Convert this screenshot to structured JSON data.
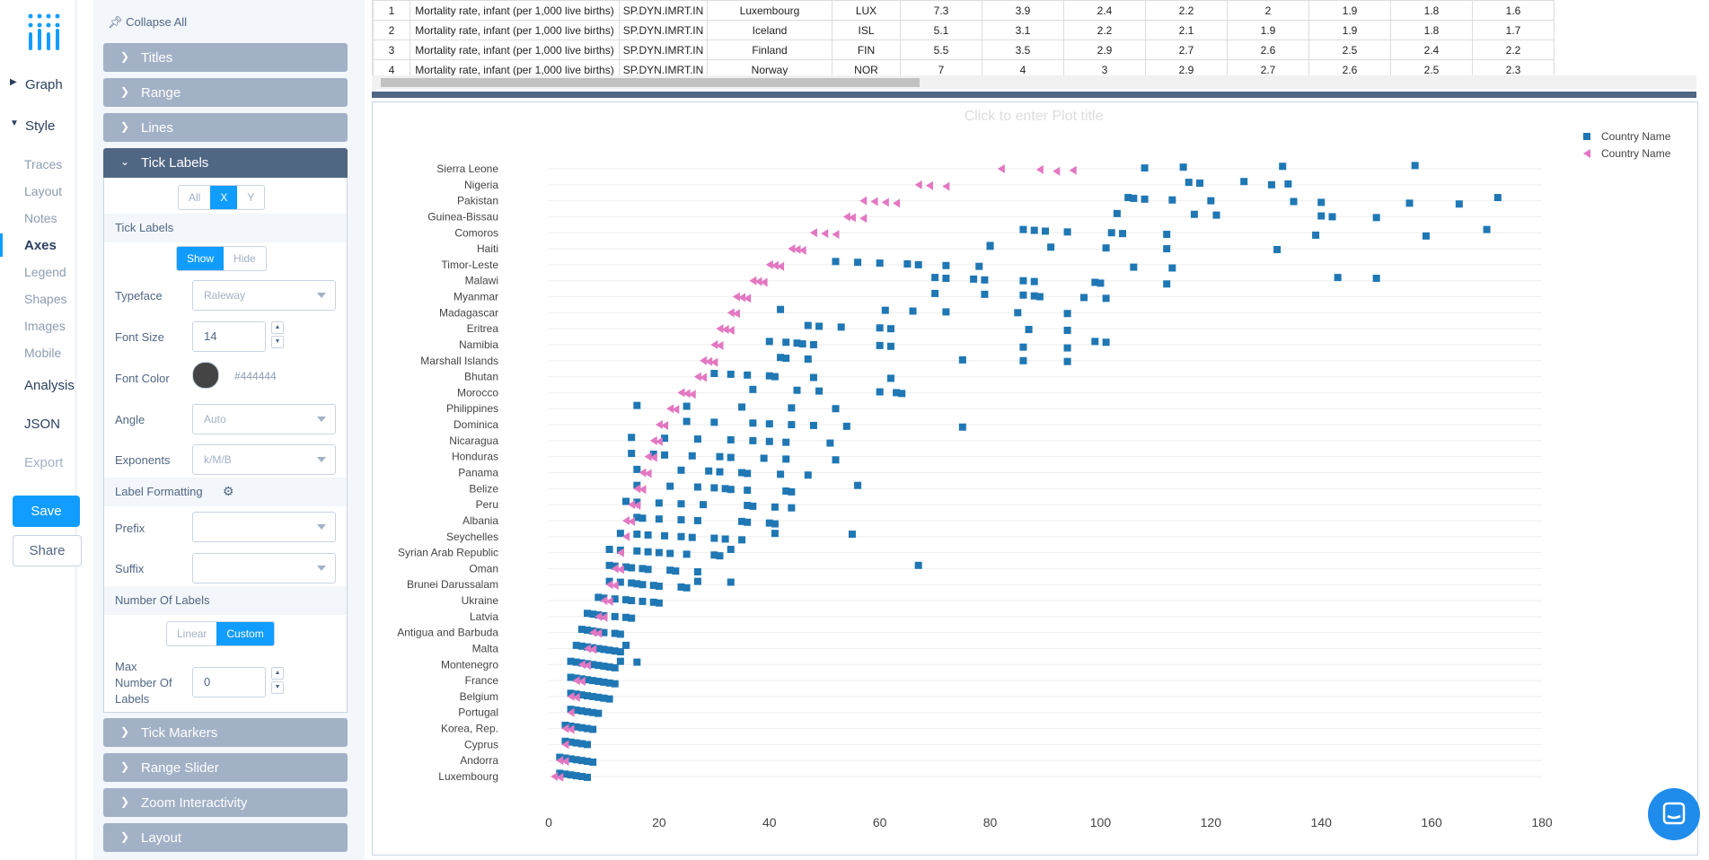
{
  "nav": {
    "graph": "Graph",
    "style": "Style",
    "style_items": [
      "Traces",
      "Layout",
      "Notes",
      "Axes",
      "Legend",
      "Shapes",
      "Images",
      "Mobile"
    ],
    "analysis": "Analysis",
    "json": "JSON",
    "export": "Export",
    "save": "Save",
    "share": "Share"
  },
  "panel": {
    "collapse_all": "Collapse All",
    "folds_top": [
      "Titles",
      "Range",
      "Lines"
    ],
    "open_fold": "Tick Labels",
    "axis_tabs": [
      "All",
      "X",
      "Y"
    ],
    "tick_labels_title": "Tick Labels",
    "show_hide": [
      "Show",
      "Hide"
    ],
    "typeface_label": "Typeface",
    "typeface_value": "Raleway",
    "font_size_label": "Font Size",
    "font_size_value": "14",
    "font_color_label": "Font Color",
    "font_color_value": "#444444",
    "angle_label": "Angle",
    "angle_value": "Auto",
    "exponents_label": "Exponents",
    "exponents_value": "k/M/B",
    "label_formatting": "Label Formatting",
    "prefix_label": "Prefix",
    "suffix_label": "Suffix",
    "number_of_labels": "Number Of Labels",
    "linear_custom": [
      "Linear",
      "Custom"
    ],
    "max_labels_label": "Max Number Of Labels",
    "max_labels_value": "0",
    "folds_bottom": [
      "Tick Markers",
      "Range Slider",
      "Zoom Interactivity",
      "Layout"
    ]
  },
  "table": {
    "rows": [
      [
        "1",
        "Mortality rate, infant (per 1,000 live births)",
        "SP.DYN.IMRT.IN",
        "Luxembourg",
        "LUX",
        "7.3",
        "3.9",
        "2.4",
        "2.2",
        "2",
        "1.9",
        "1.8",
        "1.6"
      ],
      [
        "2",
        "Mortality rate, infant (per 1,000 live births)",
        "SP.DYN.IMRT.IN",
        "Iceland",
        "ISL",
        "5.1",
        "3.1",
        "2.2",
        "2.1",
        "1.9",
        "1.9",
        "1.8",
        "1.7"
      ],
      [
        "3",
        "Mortality rate, infant (per 1,000 live births)",
        "SP.DYN.IMRT.IN",
        "Finland",
        "FIN",
        "5.5",
        "3.5",
        "2.9",
        "2.7",
        "2.6",
        "2.5",
        "2.4",
        "2.2"
      ],
      [
        "4",
        "Mortality rate, infant (per 1,000 live births)",
        "SP.DYN.IMRT.IN",
        "Norway",
        "NOR",
        "7",
        "4",
        "3",
        "2.9",
        "2.7",
        "2.6",
        "2.5",
        "2.3"
      ]
    ]
  },
  "plot": {
    "title_placeholder": "Click to enter Plot title",
    "legend": [
      "Country Name",
      "Country Name"
    ],
    "colors": {
      "series1": "#1f77b4",
      "series2": "#e377c2",
      "grid": "#eeeeee",
      "tick": "#444444"
    }
  },
  "chart_data": {
    "type": "scatter",
    "title": "",
    "xlabel": "",
    "ylabel": "",
    "xlim": [
      0,
      180
    ],
    "x_ticks": [
      0,
      20,
      40,
      60,
      80,
      100,
      120,
      140,
      160,
      180
    ],
    "y_labels": [
      "Sierra Leone",
      "Nigeria",
      "Pakistan",
      "Guinea-Bissau",
      "Comoros",
      "Haiti",
      "Timor-Leste",
      "Malawi",
      "Myanmar",
      "Madagascar",
      "Eritrea",
      "Namibia",
      "Marshall Islands",
      "Bhutan",
      "Morocco",
      "Philippines",
      "Dominica",
      "Nicaragua",
      "Honduras",
      "Panama",
      "Belize",
      "Peru",
      "Albania",
      "Seychelles",
      "Syrian Arab Republic",
      "Oman",
      "Brunei Darussalam",
      "Ukraine",
      "Latvia",
      "Antigua and Barbuda",
      "Malta",
      "Montenegro",
      "France",
      "Belgium",
      "Portugal",
      "Korea, Rep.",
      "Cyprus",
      "Andorra",
      "Luxembourg"
    ],
    "legend_position": "top-right",
    "series": [
      {
        "name": "Country Name",
        "marker": "square",
        "color": "#1f77b4",
        "points": [
          {
            "y": "Sierra Leone",
            "x": [
              157,
              133,
              115,
              108
            ]
          },
          {
            "y": "Nigeria",
            "x": [
              126,
              116,
              118,
              134,
              131
            ]
          },
          {
            "y": "Pakistan",
            "x": [
              105,
              106,
              108,
              113,
              120,
              135,
              140,
              156,
              165,
              172
            ]
          },
          {
            "y": "Guinea-Bissau",
            "x": [
              103,
              117,
              121,
              140,
              142,
              150
            ]
          },
          {
            "y": "Comoros",
            "x": [
              86,
              88,
              90,
              94,
              102,
              104,
              112,
              139,
              159,
              170
            ]
          },
          {
            "y": "Haiti",
            "x": [
              80,
              80,
              91,
              101,
              112,
              132
            ]
          },
          {
            "y": "Timor-Leste",
            "x": [
              52,
              56,
              60,
              65,
              67,
              72,
              78,
              106,
              113
            ]
          },
          {
            "y": "Malawi",
            "x": [
              70,
              72,
              77,
              79,
              86,
              88,
              99,
              100,
              112,
              143,
              150
            ]
          },
          {
            "y": "Myanmar",
            "x": [
              70,
              79,
              86,
              88,
              89,
              97,
              101
            ]
          },
          {
            "y": "Madagascar",
            "x": [
              42,
              61,
              66,
              72,
              85,
              94
            ]
          },
          {
            "y": "Eritrea",
            "x": [
              47,
              49,
              53,
              60,
              62,
              87,
              94
            ]
          },
          {
            "y": "Namibia",
            "x": [
              40,
              43,
              45,
              46,
              48,
              60,
              62,
              86,
              94,
              99,
              101
            ]
          },
          {
            "y": "Marshall Islands",
            "x": [
              42,
              43,
              47,
              75,
              86,
              94
            ]
          },
          {
            "y": "Bhutan",
            "x": [
              30,
              33,
              36,
              40,
              41,
              48,
              62
            ]
          },
          {
            "y": "Morocco",
            "x": [
              37,
              45,
              49,
              60,
              63,
              64
            ]
          },
          {
            "y": "Philippines",
            "x": [
              16,
              25,
              35,
              44,
              52
            ]
          },
          {
            "y": "Dominica",
            "x": [
              25,
              30,
              37,
              40,
              44,
              48,
              54,
              75
            ]
          },
          {
            "y": "Nicaragua",
            "x": [
              15,
              21,
              27,
              33,
              37,
              40,
              43,
              51
            ]
          },
          {
            "y": "Honduras",
            "x": [
              15,
              19,
              21,
              26,
              31,
              33,
              39,
              43,
              52
            ]
          },
          {
            "y": "Panama",
            "x": [
              16,
              24,
              29,
              31,
              35,
              36,
              42,
              47
            ]
          },
          {
            "y": "Belize",
            "x": [
              16,
              22,
              27,
              30,
              32,
              33,
              36,
              43,
              44,
              56
            ]
          },
          {
            "y": "Peru",
            "x": [
              14,
              16,
              20,
              24,
              28,
              36,
              37,
              41,
              44
            ]
          },
          {
            "y": "Albania",
            "x": [
              16,
              17,
              20,
              24,
              27,
              35,
              36,
              40,
              41
            ]
          },
          {
            "y": "Seychelles",
            "x": [
              13,
              16,
              18,
              21,
              24,
              26,
              30,
              32,
              35,
              41,
              55
            ]
          },
          {
            "y": "Syrian Arab Republic",
            "x": [
              11,
              13,
              16,
              18,
              20,
              22,
              25,
              30,
              31,
              33
            ]
          },
          {
            "y": "Oman",
            "x": [
              11,
              12,
              14,
              15,
              17,
              18,
              22,
              23,
              27,
              67
            ]
          },
          {
            "y": "Brunei Darussalam",
            "x": [
              11,
              13,
              15,
              16,
              17,
              19,
              20,
              24,
              25,
              27,
              33
            ]
          },
          {
            "y": "Ukraine",
            "x": [
              9,
              10,
              12,
              14,
              15,
              17,
              19,
              20
            ]
          },
          {
            "y": "Latvia",
            "x": [
              7,
              8,
              9,
              10,
              12,
              14,
              15
            ]
          },
          {
            "y": "Antigua and Barbuda",
            "x": [
              6,
              7,
              8,
              9,
              10,
              12,
              13
            ]
          },
          {
            "y": "Malta",
            "x": [
              5,
              6,
              7,
              8,
              9,
              10,
              11,
              12,
              13,
              14
            ]
          },
          {
            "y": "Montenegro",
            "x": [
              4,
              5,
              6,
              7,
              8,
              9,
              10,
              11,
              12,
              13,
              16
            ]
          },
          {
            "y": "France",
            "x": [
              4,
              5,
              6,
              7,
              8,
              9,
              10,
              11,
              12
            ]
          },
          {
            "y": "Belgium",
            "x": [
              4,
              5,
              6,
              7,
              8,
              9,
              10,
              11
            ]
          },
          {
            "y": "Portugal",
            "x": [
              4,
              5,
              6,
              7,
              8,
              9
            ]
          },
          {
            "y": "Korea, Rep.",
            "x": [
              3,
              4,
              5,
              6,
              7,
              8
            ]
          },
          {
            "y": "Cyprus",
            "x": [
              3,
              4,
              5,
              6,
              7
            ]
          },
          {
            "y": "Andorra",
            "x": [
              2,
              3,
              4,
              5,
              6,
              7,
              8
            ]
          },
          {
            "y": "Luxembourg",
            "x": [
              2,
              3,
              4,
              5,
              6,
              7
            ]
          }
        ]
      },
      {
        "name": "Country Name",
        "marker": "triangle-left",
        "color": "#e377c2",
        "points": [
          {
            "y": "Sierra Leone",
            "x": [
              82,
              89,
              95,
              92
            ]
          },
          {
            "y": "Nigeria",
            "x": [
              67,
              69,
              72
            ]
          },
          {
            "y": "Pakistan",
            "x": [
              57,
              59,
              61,
              63
            ]
          },
          {
            "y": "Guinea-Bissau",
            "x": [
              54,
              55,
              57
            ]
          },
          {
            "y": "Comoros",
            "x": [
              48,
              50,
              52
            ]
          },
          {
            "y": "Haiti",
            "x": [
              44,
              45,
              46
            ]
          },
          {
            "y": "Timor-Leste",
            "x": [
              40,
              41,
              42
            ]
          },
          {
            "y": "Malawi",
            "x": [
              37,
              38,
              39
            ]
          },
          {
            "y": "Myanmar",
            "x": [
              34,
              35,
              36
            ]
          },
          {
            "y": "Madagascar",
            "x": [
              33,
              34
            ]
          },
          {
            "y": "Eritrea",
            "x": [
              31,
              32,
              33
            ]
          },
          {
            "y": "Namibia",
            "x": [
              30,
              31
            ]
          },
          {
            "y": "Marshall Islands",
            "x": [
              28,
              29,
              30
            ]
          },
          {
            "y": "Bhutan",
            "x": [
              27,
              28
            ]
          },
          {
            "y": "Morocco",
            "x": [
              24,
              25,
              26
            ]
          },
          {
            "y": "Philippines",
            "x": [
              22,
              23
            ]
          },
          {
            "y": "Dominica",
            "x": [
              20,
              21
            ]
          },
          {
            "y": "Nicaragua",
            "x": [
              19,
              20
            ]
          },
          {
            "y": "Honduras",
            "x": [
              18,
              19
            ]
          },
          {
            "y": "Panama",
            "x": [
              17,
              18
            ]
          },
          {
            "y": "Belize",
            "x": [
              16,
              17
            ]
          },
          {
            "y": "Peru",
            "x": [
              15,
              16
            ]
          },
          {
            "y": "Albania",
            "x": [
              14,
              15
            ]
          },
          {
            "y": "Seychelles",
            "x": [
              14
            ]
          },
          {
            "y": "Syrian Arab Republic",
            "x": [
              13
            ]
          },
          {
            "y": "Oman",
            "x": [
              12,
              13
            ]
          },
          {
            "y": "Brunei Darussalam",
            "x": [
              11,
              12
            ]
          },
          {
            "y": "Ukraine",
            "x": [
              10,
              11
            ]
          },
          {
            "y": "Latvia",
            "x": [
              9,
              10
            ]
          },
          {
            "y": "Antigua and Barbuda",
            "x": [
              8,
              9
            ]
          },
          {
            "y": "Malta",
            "x": [
              7,
              8
            ]
          },
          {
            "y": "Montenegro",
            "x": [
              6,
              7
            ]
          },
          {
            "y": "France",
            "x": [
              5,
              6
            ]
          },
          {
            "y": "Belgium",
            "x": [
              4,
              5
            ]
          },
          {
            "y": "Portugal",
            "x": [
              4
            ]
          },
          {
            "y": "Korea, Rep.",
            "x": [
              3,
              4
            ]
          },
          {
            "y": "Cyprus",
            "x": [
              3
            ]
          },
          {
            "y": "Andorra",
            "x": [
              2,
              3
            ]
          },
          {
            "y": "Luxembourg",
            "x": [
              1,
              2
            ]
          }
        ]
      }
    ]
  }
}
